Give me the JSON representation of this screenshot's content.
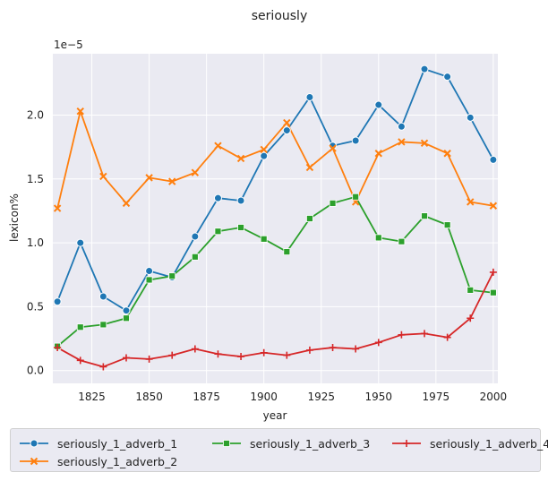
{
  "chart_data": {
    "type": "line",
    "title": "seriously",
    "xlabel": "year",
    "ylabel": "lexicon%",
    "y_multiplier_label": "1e−5",
    "xlim": [
      1808,
      2002
    ],
    "ylim": [
      -0.1,
      2.48
    ],
    "xticks": [
      1825,
      1850,
      1875,
      1900,
      1925,
      1950,
      1975,
      2000
    ],
    "yticks": [
      0.0,
      0.5,
      1.0,
      1.5,
      2.0
    ],
    "ytick_labels": [
      "0.0",
      "0.5",
      "1.0",
      "1.5",
      "2.0"
    ],
    "grid": true,
    "legend_position": "bottom",
    "x": [
      1810,
      1820,
      1830,
      1840,
      1850,
      1860,
      1870,
      1880,
      1890,
      1900,
      1910,
      1920,
      1930,
      1940,
      1950,
      1960,
      1970,
      1980,
      1990,
      2000
    ],
    "series": [
      {
        "name": "seriously_1_adverb_1",
        "color": "#1f77b4",
        "marker": "circle",
        "values": [
          0.54,
          1.0,
          0.58,
          0.47,
          0.78,
          0.73,
          1.05,
          1.35,
          1.33,
          1.68,
          1.88,
          2.14,
          1.76,
          1.8,
          2.08,
          1.91,
          2.36,
          2.3,
          1.98,
          1.65
        ]
      },
      {
        "name": "seriously_1_adverb_2",
        "color": "#ff7f0e",
        "marker": "x",
        "values": [
          1.27,
          2.03,
          1.52,
          1.31,
          1.51,
          1.48,
          1.55,
          1.76,
          1.66,
          1.73,
          1.94,
          1.59,
          1.74,
          1.32,
          1.7,
          1.79,
          1.78,
          1.7,
          1.32,
          1.29
        ]
      },
      {
        "name": "seriously_1_adverb_3",
        "color": "#2ca02c",
        "marker": "square",
        "values": [
          0.19,
          0.34,
          0.36,
          0.41,
          0.71,
          0.74,
          0.89,
          1.09,
          1.12,
          1.03,
          0.93,
          1.19,
          1.31,
          1.36,
          1.04,
          1.01,
          1.21,
          1.14,
          0.63,
          0.61
        ]
      },
      {
        "name": "seriously_1_adverb_4",
        "color": "#d62728",
        "marker": "plus",
        "values": [
          0.18,
          0.08,
          0.03,
          0.1,
          0.09,
          0.12,
          0.17,
          0.13,
          0.11,
          0.14,
          0.12,
          0.16,
          0.18,
          0.17,
          0.22,
          0.28,
          0.29,
          0.26,
          0.41,
          0.77
        ]
      }
    ]
  }
}
